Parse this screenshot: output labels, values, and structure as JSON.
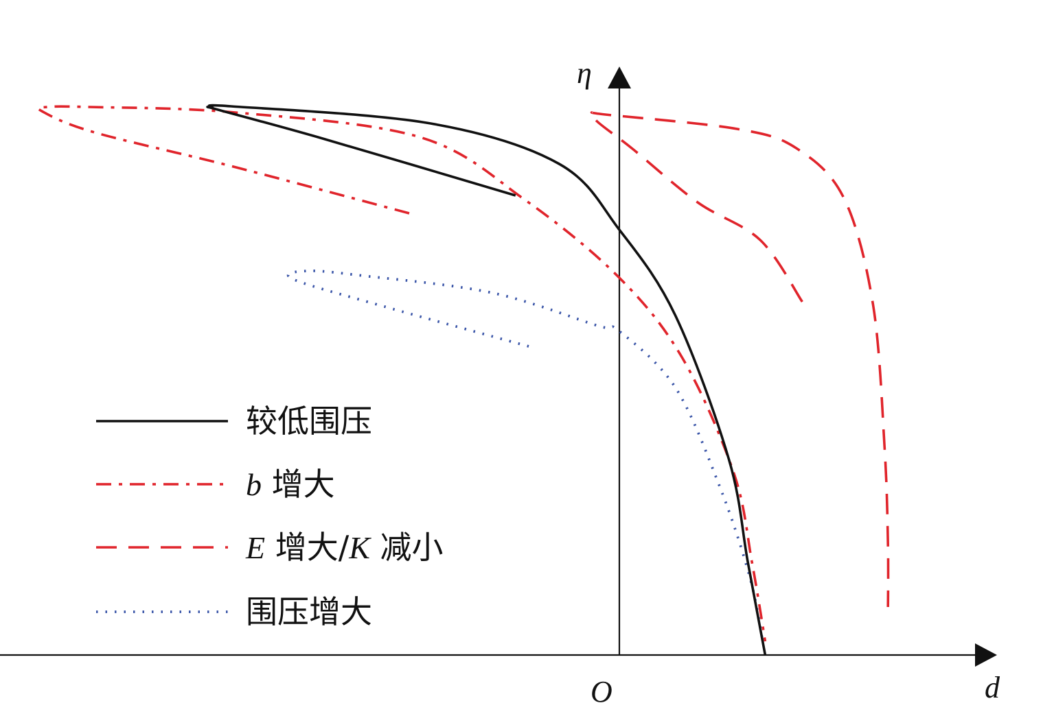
{
  "chart_data": {
    "type": "line",
    "axes": {
      "x": {
        "label": "d",
        "ticks": [],
        "arrow": true
      },
      "y": {
        "label": "η",
        "ticks": [],
        "arrow": true
      },
      "origin_label": "O",
      "x_range": [
        -7.5,
        4.5
      ],
      "y_range": [
        0,
        8
      ]
    },
    "grid": false,
    "legend": {
      "position": "bottom-left"
    },
    "series": [
      {
        "id": "solid",
        "name": "较低围压",
        "color": "#111111",
        "style": "solid",
        "points": [
          [
            -1.26,
            6.7
          ],
          [
            -3.6,
            7.53
          ],
          [
            -4.87,
            7.95
          ],
          [
            -4.94,
            7.98
          ],
          [
            -4.71,
            8.0
          ],
          [
            -2.29,
            7.75
          ],
          [
            -0.73,
            7.16
          ],
          [
            0.0,
            6.2
          ],
          [
            0.68,
            4.95
          ],
          [
            1.33,
            2.85
          ],
          [
            1.56,
            1.35
          ],
          [
            1.77,
            0.0
          ]
        ]
      },
      {
        "id": "dashdot",
        "name": "b 增大",
        "color": "#e0242b",
        "style": "dash-dot",
        "label_parts": [
          {
            "kind": "var",
            "text": "b"
          },
          {
            "kind": "text",
            "text": " 增大"
          }
        ],
        "points": [
          [
            -2.55,
            6.44
          ],
          [
            -4.65,
            7.11
          ],
          [
            -6.37,
            7.62
          ],
          [
            -7.01,
            7.93
          ],
          [
            -6.94,
            7.99
          ],
          [
            -6.43,
            7.99
          ],
          [
            -4.66,
            7.91
          ],
          [
            -2.42,
            7.55
          ],
          [
            -1.15,
            6.64
          ],
          [
            0.0,
            5.5
          ],
          [
            0.77,
            4.32
          ],
          [
            1.39,
            2.65
          ],
          [
            1.61,
            1.35
          ],
          [
            1.77,
            0.2
          ]
        ]
      },
      {
        "id": "dashed",
        "name": "E 增大/K 减小",
        "color": "#e0242b",
        "style": "dashed",
        "label_parts": [
          {
            "kind": "var",
            "text": "E"
          },
          {
            "kind": "text",
            "text": " 增大/"
          },
          {
            "kind": "var",
            "text": "K"
          },
          {
            "kind": "text",
            "text": " 减小"
          }
        ],
        "points": [
          [
            2.22,
            5.15
          ],
          [
            1.71,
            6.05
          ],
          [
            0.95,
            6.6
          ],
          [
            0.16,
            7.38
          ],
          [
            -0.27,
            7.78
          ],
          [
            -0.3,
            7.9
          ],
          [
            -0.17,
            7.88
          ],
          [
            1.43,
            7.67
          ],
          [
            2.16,
            7.38
          ],
          [
            2.73,
            6.65
          ],
          [
            3.08,
            5.1
          ],
          [
            3.22,
            3.0
          ],
          [
            3.26,
            1.6
          ],
          [
            3.26,
            0.7
          ]
        ]
      },
      {
        "id": "dotted",
        "name": "围压增大",
        "color": "#3a55a8",
        "style": "dotted",
        "points": [
          [
            -1.1,
            4.5
          ],
          [
            -2.85,
            5.08
          ],
          [
            -3.96,
            5.48
          ],
          [
            -3.79,
            5.6
          ],
          [
            -3.11,
            5.53
          ],
          [
            -1.54,
            5.28
          ],
          [
            -0.26,
            4.8
          ],
          [
            0.0,
            4.72
          ],
          [
            0.68,
            3.9
          ],
          [
            1.22,
            2.45
          ],
          [
            1.58,
            1.15
          ],
          [
            1.74,
            0.2
          ]
        ]
      }
    ]
  }
}
